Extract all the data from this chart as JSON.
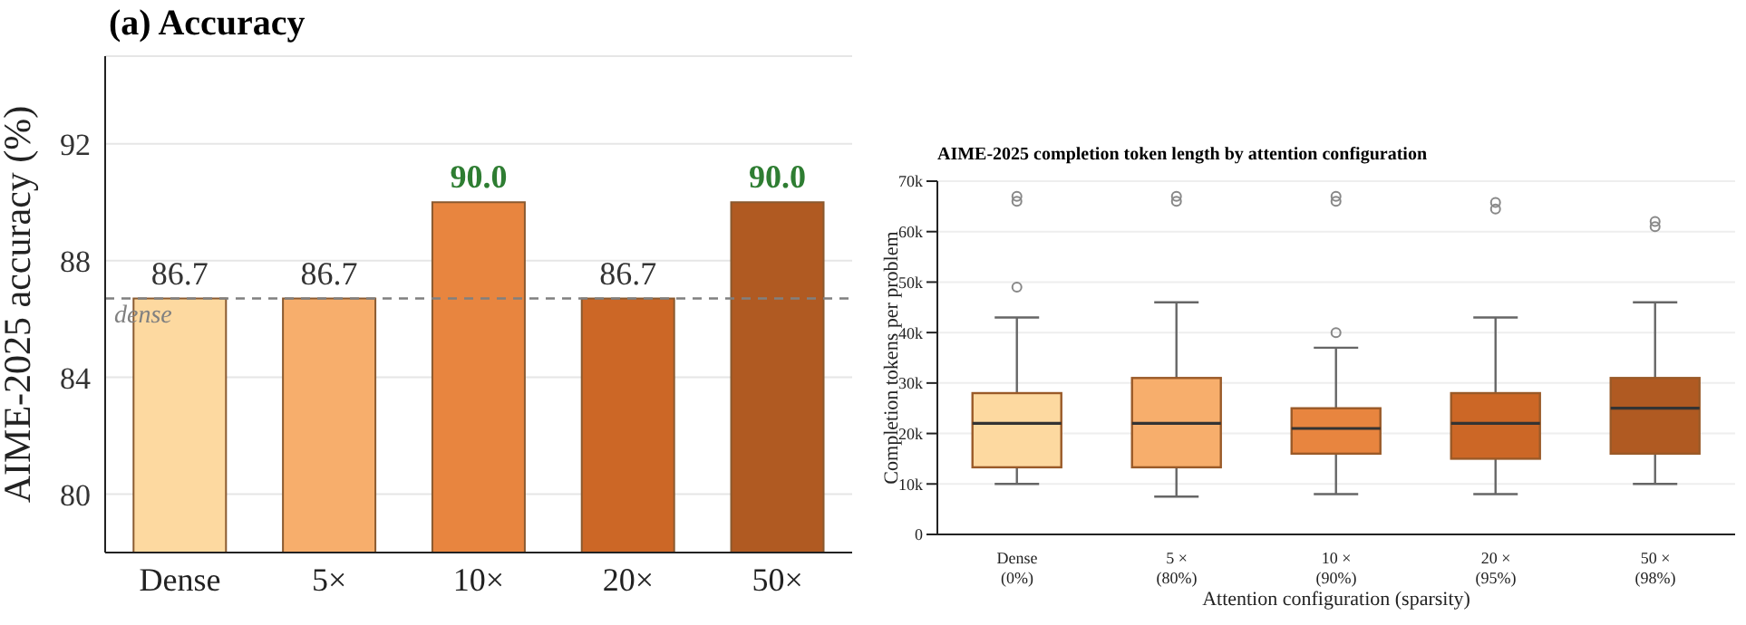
{
  "chart_data": [
    {
      "type": "bar",
      "title": "(a) Accuracy",
      "ylabel": "AIME-2025 accuracy (%)",
      "categories": [
        "Dense",
        "5×",
        "10×",
        "20×",
        "50×"
      ],
      "values": [
        86.7,
        86.7,
        90.0,
        86.7,
        90.0
      ],
      "colors": [
        "#fdd9a0",
        "#f7ae6c",
        "#e8853f",
        "#cc6726",
        "#b05a22"
      ],
      "value_labels": [
        "86.7",
        "86.7",
        "90.0",
        "86.7",
        "90.0"
      ],
      "ylim": [
        78,
        95
      ],
      "yticks": [
        80,
        84,
        88,
        92
      ],
      "grid": "y",
      "ref_lines": [
        {
          "axis": "y",
          "value": 86.7,
          "label": "dense",
          "color": "#808080",
          "line_style": "dashed"
        }
      ]
    },
    {
      "type": "box",
      "title": "AIME-2025 completion token length by attention configuration",
      "xlabel": "Attention configuration (sparsity)",
      "ylabel": "Completion tokens per problem",
      "categories": [
        "Dense\n(0%)",
        "5 ×\n(80%)",
        "10 ×\n(90%)",
        "20 ×\n(95%)",
        "50 ×\n(98%)"
      ],
      "colors": [
        "#fdd9a0",
        "#f7ae6c",
        "#e8853f",
        "#cc6726",
        "#b05a22"
      ],
      "boxes": [
        {
          "low": 10000,
          "q1": 13300,
          "median": 22000,
          "q3": 28000,
          "high": 43000,
          "outliers": [
            49000,
            66000,
            67000
          ]
        },
        {
          "low": 7500,
          "q1": 13300,
          "median": 22000,
          "q3": 31000,
          "high": 46000,
          "outliers": [
            66000,
            67000
          ]
        },
        {
          "low": 8000,
          "q1": 16000,
          "median": 21000,
          "q3": 25000,
          "high": 37000,
          "outliers": [
            40000,
            66000,
            67000
          ]
        },
        {
          "low": 8000,
          "q1": 15000,
          "median": 22000,
          "q3": 28000,
          "high": 43000,
          "outliers": [
            64500,
            65800
          ]
        },
        {
          "low": 10000,
          "q1": 16000,
          "median": 25000,
          "q3": 31000,
          "high": 46000,
          "outliers": [
            61000,
            62000
          ]
        }
      ],
      "ylim": [
        0,
        70000
      ],
      "yticks": [
        0,
        {
          "value": 10000,
          "label": "10k"
        },
        {
          "value": 20000,
          "label": "20k"
        },
        {
          "value": 30000,
          "label": "30k"
        },
        {
          "value": 40000,
          "label": "40k"
        },
        {
          "value": 50000,
          "label": "50k"
        },
        {
          "value": 60000,
          "label": "60k"
        },
        {
          "value": 70000,
          "label": "70k"
        }
      ],
      "grid": "y"
    }
  ]
}
